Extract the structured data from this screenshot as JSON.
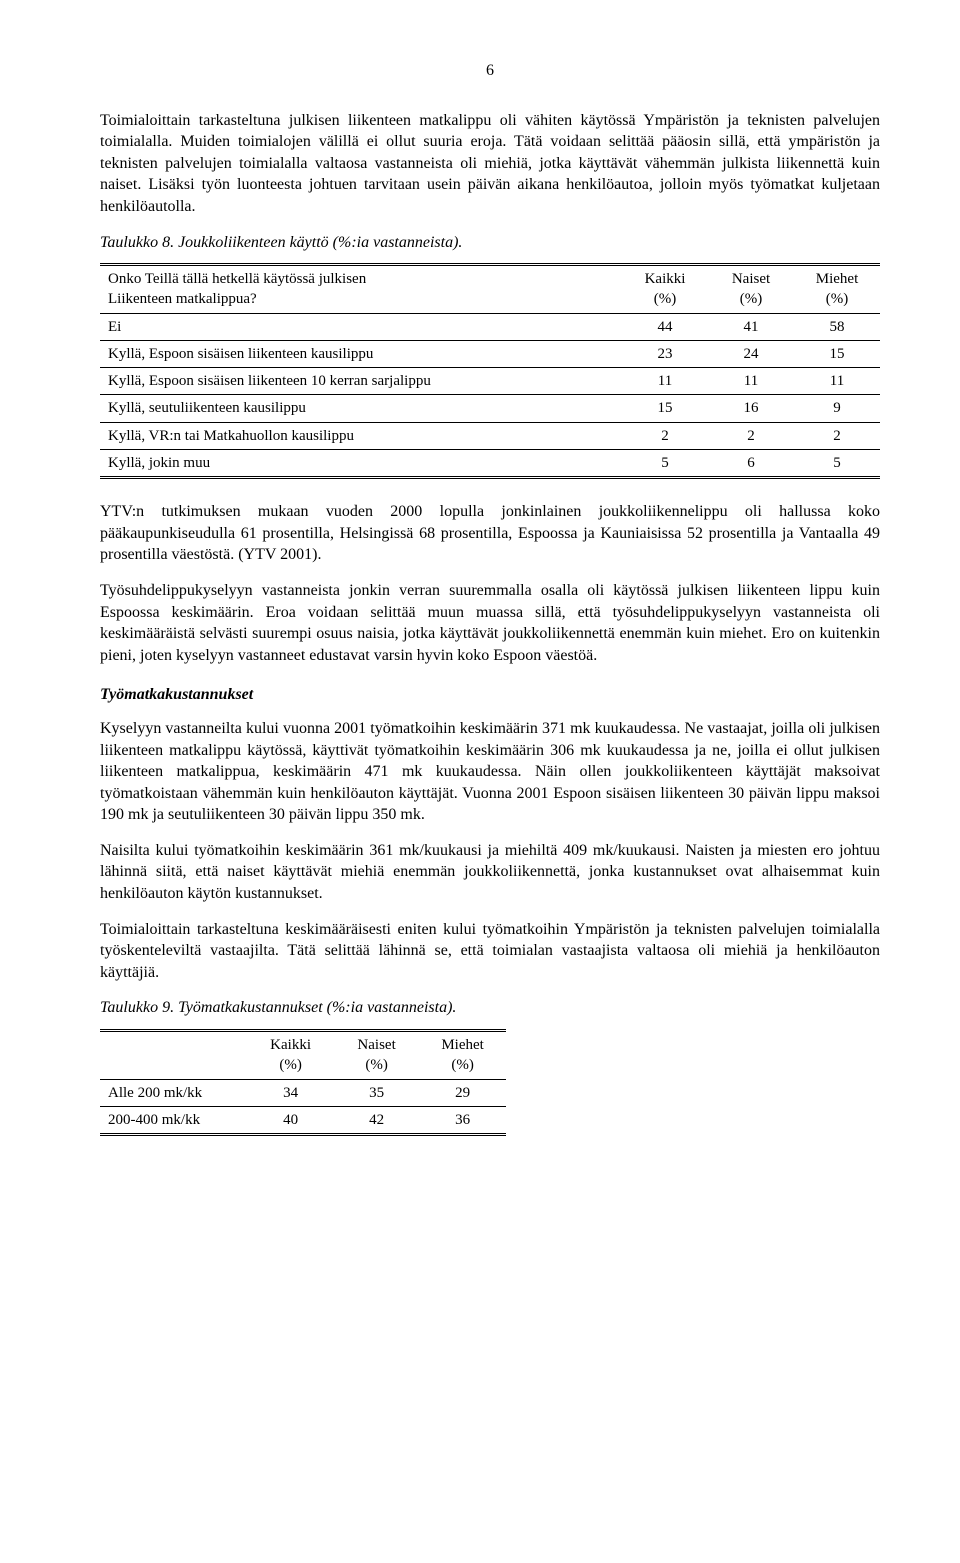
{
  "page_number": "6",
  "paragraphs": {
    "p1": "Toimialoittain tarkasteltuna julkisen liikenteen matkalippu oli vähiten käytössä Ympäristön ja teknisten palvelujen toimialalla. Muiden toimialojen välillä ei ollut suuria eroja. Tätä voidaan selittää pääosin sillä, että ympäristön ja teknisten palvelujen toimialalla valtaosa vastanneista oli miehiä, jotka käyttävät vähemmän julkista liikennettä kuin naiset. Lisäksi työn luonteesta johtuen tarvitaan usein päivän aikana henkilöautoa, jolloin myös työmatkat kuljetaan henkilöautolla.",
    "p2": "YTV:n tutkimuksen mukaan vuoden 2000 lopulla jonkinlainen joukkoliikennelippu oli hallussa koko pääkaupunkiseudulla 61 prosentilla, Helsingissä 68 prosentilla, Espoossa ja Kauniaisissa 52 prosentilla ja Vantaalla 49 prosentilla väestöstä. (YTV 2001).",
    "p3": "Työsuhdelippukyselyyn vastanneista jonkin verran suuremmalla osalla oli käytössä julkisen liikenteen lippu kuin Espoossa keskimäärin. Eroa voidaan selittää muun muassa sillä, että työsuhdelippukyselyyn vastanneista oli keskimääräistä selvästi suurempi osuus naisia, jotka käyttävät joukkoliikennettä enemmän kuin miehet. Ero on kuitenkin pieni, joten kyselyyn vastanneet edustavat varsin hyvin koko Espoon väestöä.",
    "p4": "Kyselyyn vastanneilta kului vuonna 2001 työmatkoihin keskimäärin 371 mk kuukaudessa. Ne vastaajat, joilla oli julkisen liikenteen matkalippu käytössä, käyttivät työmatkoihin keskimäärin 306 mk kuukaudessa ja ne, joilla ei ollut julkisen liikenteen matkalippua, keskimäärin 471 mk kuukaudessa. Näin ollen joukkoliikenteen käyttäjät maksoivat työmatkoistaan vähemmän kuin henkilöauton käyttäjät. Vuonna 2001 Espoon sisäisen liikenteen 30 päivän lippu maksoi 190 mk ja seutuliikenteen 30 päivän lippu 350 mk.",
    "p5": "Naisilta kului työmatkoihin keskimäärin 361 mk/kuukausi ja miehiltä 409 mk/kuukausi. Naisten ja miesten ero johtuu lähinnä siitä, että naiset käyttävät miehiä enemmän joukkoliikennettä, jonka kustannukset ovat alhaisemmat kuin henkilöauton käytön kustannukset.",
    "p6": "Toimialoittain tarkasteltuna keskimääräisesti eniten kului työmatkoihin Ympäristön ja teknisten palvelujen toimialalla työskenteleviltä vastaajilta. Tätä selittää lähinnä se, että toimialan vastaajista valtaosa oli miehiä ja henkilöauton käyttäjiä."
  },
  "section_heading": "Työmatkakustannukset",
  "table8": {
    "caption": "Taulukko 8. Joukkoliikenteen käyttö (%:ia vastanneista).",
    "header_question_line1": "Onko Teillä tällä hetkellä käytössä julkisen",
    "header_question_line2": "Liikenteen matkalippua?",
    "col_kaikki_line1": "Kaikki",
    "col_kaikki_line2": "(%)",
    "col_naiset_line1": "Naiset",
    "col_naiset_line2": "(%)",
    "col_miehet_line1": "Miehet",
    "col_miehet_line2": "(%)",
    "rows": [
      {
        "label": "Ei",
        "kaikki": "44",
        "naiset": "41",
        "miehet": "58"
      },
      {
        "label": "Kyllä, Espoon sisäisen liikenteen kausilippu",
        "kaikki": "23",
        "naiset": "24",
        "miehet": "15"
      },
      {
        "label": "Kyllä, Espoon sisäisen liikenteen 10 kerran sarjalippu",
        "kaikki": "11",
        "naiset": "11",
        "miehet": "11"
      },
      {
        "label": "Kyllä, seutuliikenteen kausilippu",
        "kaikki": "15",
        "naiset": "16",
        "miehet": "9"
      },
      {
        "label": "Kyllä, VR:n tai Matkahuollon kausilippu",
        "kaikki": "2",
        "naiset": "2",
        "miehet": "2"
      },
      {
        "label": "Kyllä, jokin muu",
        "kaikki": "5",
        "naiset": "6",
        "miehet": "5"
      }
    ]
  },
  "table9": {
    "caption": "Taulukko 9. Työmatkakustannukset (%:ia vastanneista).",
    "col_blank": "",
    "col_kaikki_line1": "Kaikki",
    "col_kaikki_line2": "(%)",
    "col_naiset_line1": "Naiset",
    "col_naiset_line2": "(%)",
    "col_miehet_line1": "Miehet",
    "col_miehet_line2": "(%)",
    "rows": [
      {
        "label": "Alle 200 mk/kk",
        "kaikki": "34",
        "naiset": "35",
        "miehet": "29"
      },
      {
        "label": "200-400 mk/kk",
        "kaikki": "40",
        "naiset": "42",
        "miehet": "36"
      }
    ]
  }
}
